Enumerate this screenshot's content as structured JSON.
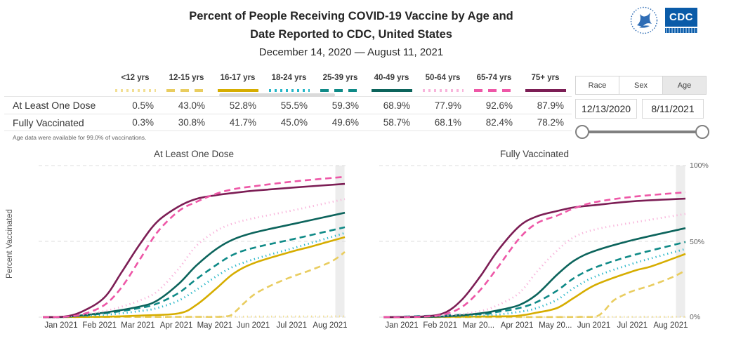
{
  "header": {
    "title_line1": "Percent of People Receiving COVID-19 Vaccine by Age and",
    "title_line2": "Date Reported to CDC, United States",
    "subtitle": "December 14, 2020 — August 11, 2021",
    "logo_text": "CDC"
  },
  "legend_table": {
    "row_labels": [
      "At Least One Dose",
      "Fully Vaccinated"
    ],
    "age_groups": [
      {
        "label": "<12 yrs",
        "color": "#f2df94",
        "style": "dotted",
        "one_dose": "0.5%",
        "fully": "0.3%"
      },
      {
        "label": "12-15 yrs",
        "color": "#e9cd60",
        "style": "dashed",
        "one_dose": "43.0%",
        "fully": "30.8%"
      },
      {
        "label": "16-17 yrs",
        "color": "#d6ad00",
        "style": "solid",
        "one_dose": "52.8%",
        "fully": "41.7%"
      },
      {
        "label": "18-24 yrs",
        "color": "#24b6c7",
        "style": "dotted",
        "one_dose": "55.5%",
        "fully": "45.0%"
      },
      {
        "label": "25-39 yrs",
        "color": "#0f8a87",
        "style": "dashed",
        "one_dose": "59.3%",
        "fully": "49.6%"
      },
      {
        "label": "40-49 yrs",
        "color": "#0c645c",
        "style": "solid",
        "one_dose": "68.9%",
        "fully": "58.7%"
      },
      {
        "label": "50-64 yrs",
        "color": "#f8b4db",
        "style": "dotted",
        "one_dose": "77.9%",
        "fully": "68.1%"
      },
      {
        "label": "65-74 yrs",
        "color": "#ee57a7",
        "style": "dashed",
        "one_dose": "92.6%",
        "fully": "82.4%"
      },
      {
        "label": "75+ yrs",
        "color": "#7c1e55",
        "style": "solid",
        "one_dose": "87.9%",
        "fully": "78.2%"
      }
    ],
    "footnote": "Age data were available for 99.0% of vaccinations."
  },
  "controls": {
    "tabs": [
      {
        "label": "Race",
        "selected": false
      },
      {
        "label": "Sex",
        "selected": false
      },
      {
        "label": "Age",
        "selected": true
      }
    ],
    "date_start": "12/13/2020",
    "date_end": "8/11/2021"
  },
  "charts": {
    "ylabel": "Percent Vaccinated",
    "y_ticks": [
      "100%",
      "50%",
      "0%"
    ]
  },
  "chart_data": [
    {
      "type": "line",
      "title": "At Least One Dose",
      "x_range": [
        "Dec 14, 2020",
        "Aug 11, 2021"
      ],
      "x_ticklabels": [
        "Jan 2021",
        "Feb 2021",
        "Mar 2021",
        "Apr 2021",
        "May 2021",
        "Jun 2021",
        "Jul 2021",
        "Aug 2021"
      ],
      "ylabel": "Percent Vaccinated",
      "ylim": [
        0,
        100
      ],
      "grid": "dashed horizontal lines at 0%, 50%, 100%",
      "series": [
        {
          "name": "<12 yrs",
          "color": "#f2df94",
          "style": "dotted",
          "final": "0.5%",
          "points": [
            [
              0,
              0.1
            ],
            [
              0.5,
              0.3
            ],
            [
              1,
              0.5
            ]
          ]
        },
        {
          "name": "12-15 yrs",
          "color": "#e9cd60",
          "style": "dashed",
          "final": "43.0%",
          "points": [
            [
              0,
              0
            ],
            [
              0.45,
              0.2
            ],
            [
              0.6,
              0.4
            ],
            [
              0.633,
              3
            ],
            [
              0.665,
              9
            ],
            [
              0.704,
              15.5
            ],
            [
              0.762,
              21.5
            ],
            [
              0.829,
              27
            ],
            [
              0.887,
              31
            ],
            [
              0.958,
              37
            ],
            [
              1,
              43
            ]
          ]
        },
        {
          "name": "16-17 yrs",
          "color": "#d6ad00",
          "style": "solid",
          "final": "52.8%",
          "points": [
            [
              0,
              0
            ],
            [
              0.204,
              0.3
            ],
            [
              0.321,
              1
            ],
            [
              0.45,
              2.5
            ],
            [
              0.508,
              8
            ],
            [
              0.575,
              19
            ],
            [
              0.633,
              29
            ],
            [
              0.704,
              36
            ],
            [
              0.829,
              43.5
            ],
            [
              0.887,
              46.5
            ],
            [
              1,
              52.8
            ]
          ]
        },
        {
          "name": "18-24 yrs",
          "color": "#24b6c7",
          "style": "dotted",
          "final": "55.5%",
          "points": [
            [
              0,
              0
            ],
            [
              0.075,
              0.2
            ],
            [
              0.204,
              1.5
            ],
            [
              0.321,
              4
            ],
            [
              0.379,
              6
            ],
            [
              0.45,
              11
            ],
            [
              0.508,
              18
            ],
            [
              0.575,
              27
            ],
            [
              0.633,
              33.5
            ],
            [
              0.704,
              38.5
            ],
            [
              0.829,
              45.5
            ],
            [
              1,
              55.5
            ]
          ]
        },
        {
          "name": "25-39 yrs",
          "color": "#0f8a87",
          "style": "dashed",
          "final": "59.3%",
          "points": [
            [
              0,
              0
            ],
            [
              0.075,
              0.2
            ],
            [
              0.204,
              2.5
            ],
            [
              0.321,
              6
            ],
            [
              0.379,
              9
            ],
            [
              0.45,
              16
            ],
            [
              0.508,
              25
            ],
            [
              0.575,
              34.5
            ],
            [
              0.633,
              41.5
            ],
            [
              0.704,
              46
            ],
            [
              0.829,
              51.5
            ],
            [
              1,
              59.3
            ]
          ]
        },
        {
          "name": "40-49 yrs",
          "color": "#0c645c",
          "style": "solid",
          "final": "68.9%",
          "points": [
            [
              0,
              0
            ],
            [
              0.075,
              0.2
            ],
            [
              0.204,
              3
            ],
            [
              0.321,
              7
            ],
            [
              0.379,
              11
            ],
            [
              0.45,
              22
            ],
            [
              0.508,
              34
            ],
            [
              0.575,
              45
            ],
            [
              0.633,
              51.5
            ],
            [
              0.704,
              56
            ],
            [
              0.829,
              61.5
            ],
            [
              1,
              68.9
            ]
          ]
        },
        {
          "name": "50-64 yrs",
          "color": "#f8b4db",
          "style": "dotted",
          "final": "77.9%",
          "points": [
            [
              0,
              0
            ],
            [
              0.075,
              0.3
            ],
            [
              0.204,
              4
            ],
            [
              0.262,
              7
            ],
            [
              0.321,
              11
            ],
            [
              0.379,
              17
            ],
            [
              0.45,
              32
            ],
            [
              0.508,
              47
            ],
            [
              0.575,
              57
            ],
            [
              0.633,
              62
            ],
            [
              0.704,
              65.5
            ],
            [
              0.829,
              70.5
            ],
            [
              0.887,
              73
            ],
            [
              1,
              77.9
            ]
          ]
        },
        {
          "name": "65-74 yrs",
          "color": "#ee57a7",
          "style": "dashed",
          "final": "92.6%",
          "points": [
            [
              0,
              0
            ],
            [
              0.075,
              0.3
            ],
            [
              0.133,
              2
            ],
            [
              0.204,
              8
            ],
            [
              0.262,
              20
            ],
            [
              0.321,
              38
            ],
            [
              0.379,
              56
            ],
            [
              0.45,
              70
            ],
            [
              0.508,
              76
            ],
            [
              0.575,
              81.5
            ],
            [
              0.633,
              84.5
            ],
            [
              0.704,
              86.5
            ],
            [
              0.829,
              89.5
            ],
            [
              1,
              92.6
            ]
          ]
        },
        {
          "name": "75+ yrs",
          "color": "#7c1e55",
          "style": "solid",
          "final": "87.9%",
          "points": [
            [
              0,
              0
            ],
            [
              0.075,
              0.5
            ],
            [
              0.133,
              4
            ],
            [
              0.204,
              13
            ],
            [
              0.262,
              30
            ],
            [
              0.321,
              48
            ],
            [
              0.379,
              63
            ],
            [
              0.45,
              73
            ],
            [
              0.508,
              78
            ],
            [
              0.575,
              80.5
            ],
            [
              0.633,
              82
            ],
            [
              0.704,
              83.5
            ],
            [
              0.829,
              85.5
            ],
            [
              1,
              87.9
            ]
          ]
        }
      ]
    },
    {
      "type": "line",
      "title": "Fully Vaccinated",
      "x_range": [
        "Dec 14, 2020",
        "Aug 11, 2021"
      ],
      "x_ticklabels": [
        "Jan 2021",
        "Feb 2021",
        "Mar 20...",
        "Apr 2021",
        "May 20...",
        "Jun 2021",
        "Jul 2021",
        "Aug 2021"
      ],
      "ylabel": "Percent Vaccinated",
      "ylim": [
        0,
        100
      ],
      "grid": "dashed horizontal lines at 0%, 50%, 100%",
      "series": [
        {
          "name": "<12 yrs",
          "color": "#f2df94",
          "style": "dotted",
          "final": "0.3%",
          "points": [
            [
              0,
              0.05
            ],
            [
              0.5,
              0.15
            ],
            [
              1,
              0.3
            ]
          ]
        },
        {
          "name": "12-15 yrs",
          "color": "#e9cd60",
          "style": "dashed",
          "final": "30.8%",
          "points": [
            [
              0,
              0
            ],
            [
              0.575,
              0.1
            ],
            [
              0.65,
              0.2
            ],
            [
              0.704,
              0.5
            ],
            [
              0.73,
              4
            ],
            [
              0.762,
              11
            ],
            [
              0.8,
              15
            ],
            [
              0.829,
              17.5
            ],
            [
              0.887,
              21
            ],
            [
              0.958,
              26.5
            ],
            [
              1,
              30.8
            ]
          ]
        },
        {
          "name": "16-17 yrs",
          "color": "#d6ad00",
          "style": "solid",
          "final": "41.7%",
          "points": [
            [
              0,
              0
            ],
            [
              0.379,
              0.5
            ],
            [
              0.45,
              1
            ],
            [
              0.508,
              3
            ],
            [
              0.575,
              6
            ],
            [
              0.633,
              13
            ],
            [
              0.704,
              21.5
            ],
            [
              0.829,
              30.5
            ],
            [
              0.887,
              33.5
            ],
            [
              1,
              41.7
            ]
          ]
        },
        {
          "name": "18-24 yrs",
          "color": "#24b6c7",
          "style": "dotted",
          "final": "45.0%",
          "points": [
            [
              0,
              0
            ],
            [
              0.321,
              1
            ],
            [
              0.45,
              3.5
            ],
            [
              0.508,
              6
            ],
            [
              0.575,
              11.5
            ],
            [
              0.633,
              19.5
            ],
            [
              0.704,
              27
            ],
            [
              0.829,
              35.5
            ],
            [
              1,
              45
            ]
          ]
        },
        {
          "name": "25-39 yrs",
          "color": "#0f8a87",
          "style": "dashed",
          "final": "49.6%",
          "points": [
            [
              0,
              0
            ],
            [
              0.321,
              2
            ],
            [
              0.379,
              3.5
            ],
            [
              0.45,
              6
            ],
            [
              0.508,
              10
            ],
            [
              0.575,
              17.5
            ],
            [
              0.633,
              26
            ],
            [
              0.704,
              33
            ],
            [
              0.829,
              41
            ],
            [
              1,
              49.6
            ]
          ]
        },
        {
          "name": "40-49 yrs",
          "color": "#0c645c",
          "style": "solid",
          "final": "58.7%",
          "points": [
            [
              0,
              0
            ],
            [
              0.204,
              0.5
            ],
            [
              0.321,
              2.5
            ],
            [
              0.379,
              4.5
            ],
            [
              0.45,
              8
            ],
            [
              0.508,
              15
            ],
            [
              0.575,
              28
            ],
            [
              0.633,
              37.5
            ],
            [
              0.704,
              44
            ],
            [
              0.829,
              51
            ],
            [
              1,
              58.7
            ]
          ]
        },
        {
          "name": "50-64 yrs",
          "color": "#f8b4db",
          "style": "dotted",
          "final": "68.1%",
          "points": [
            [
              0,
              0
            ],
            [
              0.204,
              1
            ],
            [
              0.321,
              4
            ],
            [
              0.379,
              8
            ],
            [
              0.45,
              16
            ],
            [
              0.508,
              30
            ],
            [
              0.575,
              44
            ],
            [
              0.633,
              53
            ],
            [
              0.704,
              58
            ],
            [
              0.829,
              62.5
            ],
            [
              1,
              68.1
            ]
          ]
        },
        {
          "name": "65-74 yrs",
          "color": "#ee57a7",
          "style": "dashed",
          "final": "82.4%",
          "points": [
            [
              0,
              0
            ],
            [
              0.133,
              0.3
            ],
            [
              0.204,
              2
            ],
            [
              0.262,
              7
            ],
            [
              0.321,
              18
            ],
            [
              0.379,
              33
            ],
            [
              0.45,
              52
            ],
            [
              0.508,
              62
            ],
            [
              0.575,
              67
            ],
            [
              0.633,
              72
            ],
            [
              0.704,
              76
            ],
            [
              0.829,
              79.5
            ],
            [
              1,
              82.4
            ]
          ]
        },
        {
          "name": "75+ yrs",
          "color": "#7c1e55",
          "style": "solid",
          "final": "78.2%",
          "points": [
            [
              0,
              0
            ],
            [
              0.133,
              0.5
            ],
            [
              0.204,
              3
            ],
            [
              0.262,
              12
            ],
            [
              0.321,
              27
            ],
            [
              0.379,
              44
            ],
            [
              0.45,
              60
            ],
            [
              0.508,
              66.5
            ],
            [
              0.575,
              70
            ],
            [
              0.633,
              72.5
            ],
            [
              0.704,
              74
            ],
            [
              0.829,
              76.5
            ],
            [
              1,
              78.2
            ]
          ]
        }
      ]
    }
  ]
}
